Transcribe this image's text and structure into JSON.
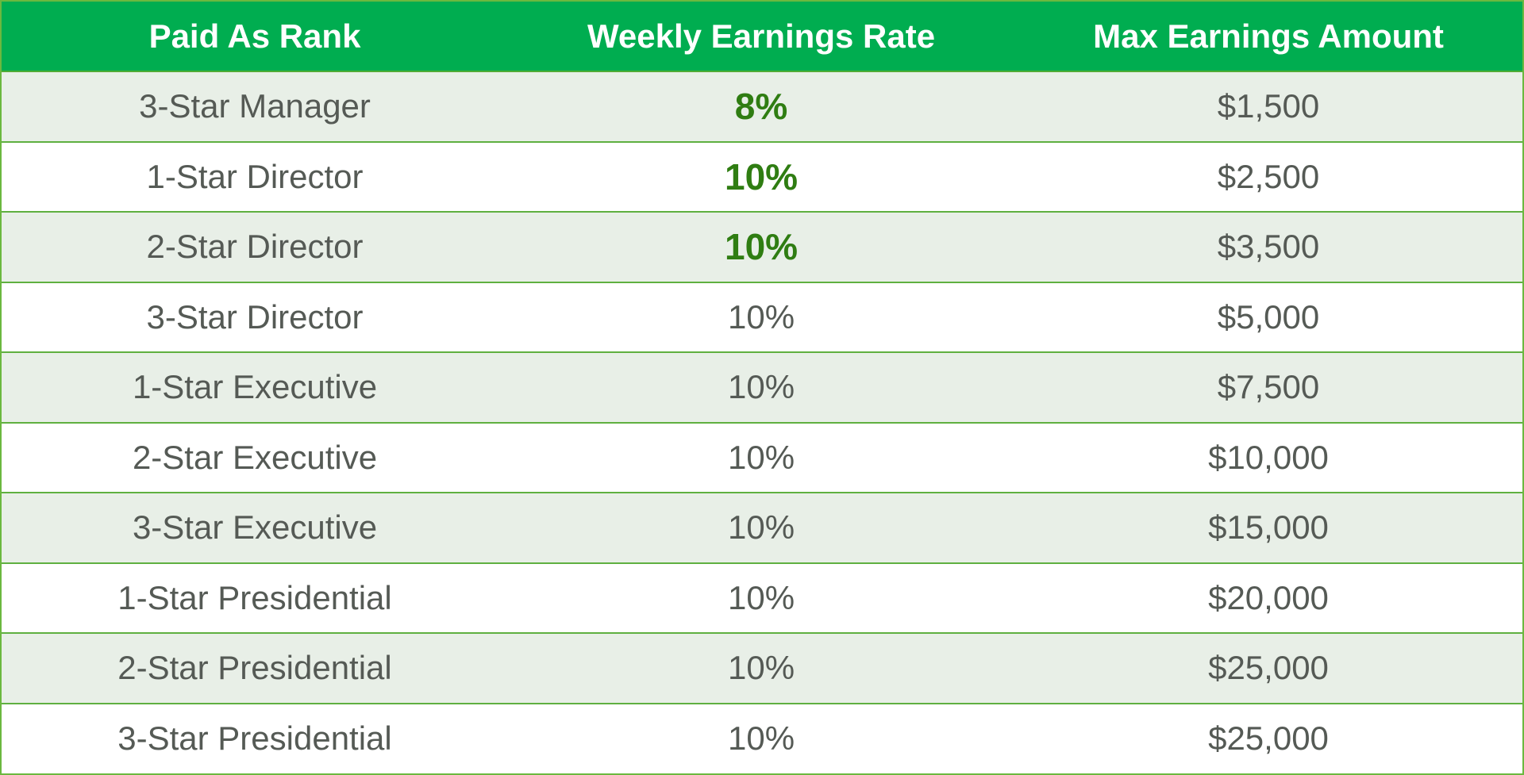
{
  "table": {
    "headers": [
      "Paid As Rank",
      "Weekly Earnings Rate",
      "Max Earnings Amount"
    ],
    "rows": [
      {
        "rank": "3-Star Manager",
        "rate": "8%",
        "max": "$1,500",
        "rate_emphasized": true
      },
      {
        "rank": "1-Star Director",
        "rate": "10%",
        "max": "$2,500",
        "rate_emphasized": true
      },
      {
        "rank": "2-Star Director",
        "rate": "10%",
        "max": "$3,500",
        "rate_emphasized": true
      },
      {
        "rank": "3-Star Director",
        "rate": "10%",
        "max": "$5,000",
        "rate_emphasized": false
      },
      {
        "rank": "1-Star Executive",
        "rate": "10%",
        "max": "$7,500",
        "rate_emphasized": false
      },
      {
        "rank": "2-Star Executive",
        "rate": "10%",
        "max": "$10,000",
        "rate_emphasized": false
      },
      {
        "rank": "3-Star Executive",
        "rate": "10%",
        "max": "$15,000",
        "rate_emphasized": false
      },
      {
        "rank": "1-Star Presidential",
        "rate": "10%",
        "max": "$20,000",
        "rate_emphasized": false
      },
      {
        "rank": "2-Star Presidential",
        "rate": "10%",
        "max": "$25,000",
        "rate_emphasized": false
      },
      {
        "rank": "3-Star Presidential",
        "rate": "10%",
        "max": "$25,000",
        "rate_emphasized": false
      }
    ]
  },
  "colors": {
    "header_background": "#00ad50",
    "header_text": "#ffffff",
    "row_shaded": "#e8efe7",
    "row_plain": "#ffffff",
    "border": "#5fb040",
    "emphasis_text": "#2f7d12",
    "body_text": "#555a55"
  }
}
